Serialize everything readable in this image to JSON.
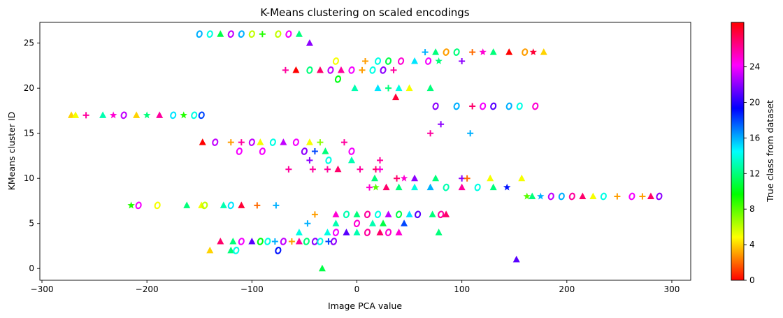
{
  "chart_data": {
    "type": "scatter",
    "title": "K-Means clustering on scaled encodings",
    "xlabel": "Image PCA value",
    "ylabel": "KMeans cluster ID",
    "colorbar_label": "True class from dataset",
    "xlim": [
      -302,
      318
    ],
    "ylim": [
      -1.3,
      27.3
    ],
    "xticks": [
      -300,
      -200,
      -100,
      0,
      100,
      200,
      300
    ],
    "xtick_labels": [
      "−300",
      "−200",
      "−100",
      "0",
      "100",
      "200",
      "300"
    ],
    "yticks": [
      0,
      5,
      10,
      15,
      20,
      25
    ],
    "ytick_labels": [
      "0",
      "5",
      "10",
      "15",
      "20",
      "25"
    ],
    "colorbar": {
      "colormap": "hsv",
      "vmin": 0,
      "vmax": 29,
      "ticks": [
        0,
        4,
        8,
        12,
        16,
        20,
        24
      ],
      "tick_labels": [
        "0",
        "4",
        "8",
        "12",
        "16",
        "20",
        "24"
      ]
    },
    "grid": false,
    "legend": "none",
    "marker_types": [
      "^",
      "o",
      "+",
      "*"
    ],
    "points": [
      {
        "x": -33,
        "y": 0,
        "c": 11,
        "m": "^"
      },
      {
        "x": 152,
        "y": 1,
        "c": 21,
        "m": "^"
      },
      {
        "x": -140,
        "y": 2,
        "c": 4,
        "m": "^"
      },
      {
        "x": -120,
        "y": 2,
        "c": 12,
        "m": "^"
      },
      {
        "x": -115,
        "y": 2,
        "c": 14,
        "m": "o"
      },
      {
        "x": -75,
        "y": 2,
        "c": 19,
        "m": "o"
      },
      {
        "x": -130,
        "y": 3,
        "c": 27,
        "m": "^"
      },
      {
        "x": -118,
        "y": 3,
        "c": 12,
        "m": "^"
      },
      {
        "x": -110,
        "y": 3,
        "c": 24,
        "m": "o"
      },
      {
        "x": -100,
        "y": 3,
        "c": 21,
        "m": "^"
      },
      {
        "x": -92,
        "y": 3,
        "c": 10,
        "m": "o"
      },
      {
        "x": -85,
        "y": 3,
        "c": 14,
        "m": "o"
      },
      {
        "x": -78,
        "y": 3,
        "c": 16,
        "m": "+"
      },
      {
        "x": -70,
        "y": 3,
        "c": 23,
        "m": "o"
      },
      {
        "x": -62,
        "y": 3,
        "c": 3,
        "m": "+"
      },
      {
        "x": -55,
        "y": 3,
        "c": 26,
        "m": "^"
      },
      {
        "x": -48,
        "y": 3,
        "c": 12,
        "m": "o"
      },
      {
        "x": -40,
        "y": 3,
        "c": 22,
        "m": "o"
      },
      {
        "x": -35,
        "y": 3,
        "c": 14,
        "m": "o"
      },
      {
        "x": -27,
        "y": 3,
        "c": 18,
        "m": "+"
      },
      {
        "x": -22,
        "y": 3,
        "c": 22,
        "m": "o"
      },
      {
        "x": -28,
        "y": 4,
        "c": 14,
        "m": "^"
      },
      {
        "x": -20,
        "y": 4,
        "c": 24,
        "m": "o"
      },
      {
        "x": -10,
        "y": 4,
        "c": 21,
        "m": "^"
      },
      {
        "x": 0,
        "y": 4,
        "c": 13,
        "m": "^"
      },
      {
        "x": 10,
        "y": 4,
        "c": 26,
        "m": "o"
      },
      {
        "x": 22,
        "y": 4,
        "c": 27,
        "m": "^"
      },
      {
        "x": 30,
        "y": 4,
        "c": 25,
        "m": "o"
      },
      {
        "x": 40,
        "y": 4,
        "c": 25,
        "m": "^"
      },
      {
        "x": 78,
        "y": 4,
        "c": 12,
        "m": "^"
      },
      {
        "x": -55,
        "y": 4,
        "c": 14,
        "m": "^"
      },
      {
        "x": -47,
        "y": 5,
        "c": 16,
        "m": "+"
      },
      {
        "x": -20,
        "y": 5,
        "c": 13,
        "m": "^"
      },
      {
        "x": 0,
        "y": 5,
        "c": 25,
        "m": "o"
      },
      {
        "x": 15,
        "y": 5,
        "c": 13,
        "m": "^"
      },
      {
        "x": 25,
        "y": 5,
        "c": 11,
        "m": "^"
      },
      {
        "x": 45,
        "y": 5,
        "c": 18,
        "m": "^"
      },
      {
        "x": -40,
        "y": 6,
        "c": 3,
        "m": "+"
      },
      {
        "x": -20,
        "y": 6,
        "c": 25,
        "m": "^"
      },
      {
        "x": -10,
        "y": 6,
        "c": 13,
        "m": "o"
      },
      {
        "x": 0,
        "y": 6,
        "c": 12,
        "m": "^"
      },
      {
        "x": 10,
        "y": 6,
        "c": 26,
        "m": "o"
      },
      {
        "x": 20,
        "y": 6,
        "c": 14,
        "m": "o"
      },
      {
        "x": 30,
        "y": 6,
        "c": 23,
        "m": "^"
      },
      {
        "x": 40,
        "y": 6,
        "c": 11,
        "m": "o"
      },
      {
        "x": 50,
        "y": 6,
        "c": 15,
        "m": "^"
      },
      {
        "x": 58,
        "y": 6,
        "c": 21,
        "m": "o"
      },
      {
        "x": 72,
        "y": 6,
        "c": 12,
        "m": "^"
      },
      {
        "x": 80,
        "y": 6,
        "c": 26,
        "m": "o"
      },
      {
        "x": 85,
        "y": 6,
        "c": 27,
        "m": "^"
      },
      {
        "x": -215,
        "y": 7,
        "c": 9,
        "m": "*"
      },
      {
        "x": -208,
        "y": 7,
        "c": 24,
        "m": "o"
      },
      {
        "x": -190,
        "y": 7,
        "c": 5,
        "m": "o"
      },
      {
        "x": -162,
        "y": 7,
        "c": 12,
        "m": "^"
      },
      {
        "x": -148,
        "y": 7,
        "c": 5,
        "m": "^"
      },
      {
        "x": -145,
        "y": 7,
        "c": 6,
        "m": "o"
      },
      {
        "x": -127,
        "y": 7,
        "c": 13,
        "m": "^"
      },
      {
        "x": -120,
        "y": 7,
        "c": 15,
        "m": "o"
      },
      {
        "x": -110,
        "y": 7,
        "c": 28,
        "m": "^"
      },
      {
        "x": -95,
        "y": 7,
        "c": 2,
        "m": "+"
      },
      {
        "x": -77,
        "y": 7,
        "c": 16,
        "m": "+"
      },
      {
        "x": 162,
        "y": 8,
        "c": 8,
        "m": "*"
      },
      {
        "x": 167,
        "y": 8,
        "c": 12,
        "m": "^"
      },
      {
        "x": 175,
        "y": 8,
        "c": 16,
        "m": "*"
      },
      {
        "x": 185,
        "y": 8,
        "c": 23,
        "m": "o"
      },
      {
        "x": 195,
        "y": 8,
        "c": 16,
        "m": "o"
      },
      {
        "x": 205,
        "y": 8,
        "c": 26,
        "m": "o"
      },
      {
        "x": 215,
        "y": 8,
        "c": 27,
        "m": "^"
      },
      {
        "x": 225,
        "y": 8,
        "c": 5,
        "m": "^"
      },
      {
        "x": 235,
        "y": 8,
        "c": 14,
        "m": "o"
      },
      {
        "x": 248,
        "y": 8,
        "c": 3,
        "m": "+"
      },
      {
        "x": 262,
        "y": 8,
        "c": 24,
        "m": "o"
      },
      {
        "x": 272,
        "y": 8,
        "c": 3,
        "m": "+"
      },
      {
        "x": 280,
        "y": 8,
        "c": 27,
        "m": "^"
      },
      {
        "x": 288,
        "y": 8,
        "c": 22,
        "m": "o"
      },
      {
        "x": 12,
        "y": 9,
        "c": 25,
        "m": "+"
      },
      {
        "x": 18,
        "y": 9,
        "c": 8,
        "m": "*"
      },
      {
        "x": 28,
        "y": 9,
        "c": 27,
        "m": "^"
      },
      {
        "x": 40,
        "y": 9,
        "c": 12,
        "m": "^"
      },
      {
        "x": 55,
        "y": 9,
        "c": 14,
        "m": "^"
      },
      {
        "x": 70,
        "y": 9,
        "c": 16,
        "m": "^"
      },
      {
        "x": 85,
        "y": 9,
        "c": 13,
        "m": "o"
      },
      {
        "x": 100,
        "y": 9,
        "c": 26,
        "m": "^"
      },
      {
        "x": 115,
        "y": 9,
        "c": 14,
        "m": "o"
      },
      {
        "x": 130,
        "y": 9,
        "c": 12,
        "m": "^"
      },
      {
        "x": 143,
        "y": 9,
        "c": 19,
        "m": "*"
      },
      {
        "x": 17,
        "y": 10,
        "c": 12,
        "m": "^"
      },
      {
        "x": 38,
        "y": 10,
        "c": 27,
        "m": "+"
      },
      {
        "x": 45,
        "y": 10,
        "c": 25,
        "m": "*"
      },
      {
        "x": 55,
        "y": 10,
        "c": 22,
        "m": "^"
      },
      {
        "x": 75,
        "y": 10,
        "c": 12,
        "m": "^"
      },
      {
        "x": 100,
        "y": 10,
        "c": 22,
        "m": "+"
      },
      {
        "x": 105,
        "y": 10,
        "c": 2,
        "m": "+"
      },
      {
        "x": 127,
        "y": 10,
        "c": 5,
        "m": "^"
      },
      {
        "x": 157,
        "y": 10,
        "c": 5,
        "m": "^"
      },
      {
        "x": -65,
        "y": 11,
        "c": 26,
        "m": "+"
      },
      {
        "x": -42,
        "y": 11,
        "c": 26,
        "m": "+"
      },
      {
        "x": -28,
        "y": 11,
        "c": 26,
        "m": "+"
      },
      {
        "x": -18,
        "y": 11,
        "c": 27,
        "m": "^"
      },
      {
        "x": 3,
        "y": 11,
        "c": 26,
        "m": "+"
      },
      {
        "x": 18,
        "y": 11,
        "c": 27,
        "m": "+"
      },
      {
        "x": 22,
        "y": 11,
        "c": 25,
        "m": "+"
      },
      {
        "x": -45,
        "y": 12,
        "c": 22,
        "m": "+"
      },
      {
        "x": -27,
        "y": 12,
        "c": 14,
        "m": "o"
      },
      {
        "x": -5,
        "y": 12,
        "c": 13,
        "m": "^"
      },
      {
        "x": 22,
        "y": 12,
        "c": 26,
        "m": "+"
      },
      {
        "x": -112,
        "y": 13,
        "c": 24,
        "m": "o"
      },
      {
        "x": -90,
        "y": 13,
        "c": 24,
        "m": "o"
      },
      {
        "x": -50,
        "y": 13,
        "c": 22,
        "m": "o"
      },
      {
        "x": -40,
        "y": 13,
        "c": 18,
        "m": "+"
      },
      {
        "x": -30,
        "y": 13,
        "c": 12,
        "m": "^"
      },
      {
        "x": -5,
        "y": 13,
        "c": 24,
        "m": "o"
      },
      {
        "x": -147,
        "y": 14,
        "c": 0,
        "m": "^"
      },
      {
        "x": -135,
        "y": 14,
        "c": 23,
        "m": "o"
      },
      {
        "x": -120,
        "y": 14,
        "c": 3,
        "m": "+"
      },
      {
        "x": -110,
        "y": 14,
        "c": 26,
        "m": "+"
      },
      {
        "x": -100,
        "y": 14,
        "c": 23,
        "m": "o"
      },
      {
        "x": -92,
        "y": 14,
        "c": 5,
        "m": "^"
      },
      {
        "x": -80,
        "y": 14,
        "c": 14,
        "m": "o"
      },
      {
        "x": -70,
        "y": 14,
        "c": 23,
        "m": "^"
      },
      {
        "x": -58,
        "y": 14,
        "c": 24,
        "m": "o"
      },
      {
        "x": -45,
        "y": 14,
        "c": 5,
        "m": "^"
      },
      {
        "x": -35,
        "y": 14,
        "c": 7,
        "m": "+"
      },
      {
        "x": -12,
        "y": 14,
        "c": 26,
        "m": "+"
      },
      {
        "x": 70,
        "y": 15,
        "c": 26,
        "m": "+"
      },
      {
        "x": 108,
        "y": 15,
        "c": 16,
        "m": "+"
      },
      {
        "x": 80,
        "y": 16,
        "c": 22,
        "m": "+"
      },
      {
        "x": -272,
        "y": 17,
        "c": 4,
        "m": "^"
      },
      {
        "x": -268,
        "y": 17,
        "c": 5,
        "m": "^"
      },
      {
        "x": -258,
        "y": 17,
        "c": 26,
        "m": "+"
      },
      {
        "x": -242,
        "y": 17,
        "c": 13,
        "m": "^"
      },
      {
        "x": -232,
        "y": 17,
        "c": 25,
        "m": "*"
      },
      {
        "x": -222,
        "y": 17,
        "c": 23,
        "m": "o"
      },
      {
        "x": -210,
        "y": 17,
        "c": 4,
        "m": "^"
      },
      {
        "x": -200,
        "y": 17,
        "c": 12,
        "m": "*"
      },
      {
        "x": -188,
        "y": 17,
        "c": 26,
        "m": "^"
      },
      {
        "x": -175,
        "y": 17,
        "c": 15,
        "m": "o"
      },
      {
        "x": -165,
        "y": 17,
        "c": 9,
        "m": "*"
      },
      {
        "x": -155,
        "y": 17,
        "c": 14,
        "m": "o"
      },
      {
        "x": -148,
        "y": 17,
        "c": 18,
        "m": "o"
      },
      {
        "x": 75,
        "y": 18,
        "c": 22,
        "m": "o"
      },
      {
        "x": 95,
        "y": 18,
        "c": 16,
        "m": "o"
      },
      {
        "x": 110,
        "y": 18,
        "c": 27,
        "m": "+"
      },
      {
        "x": 120,
        "y": 18,
        "c": 24,
        "m": "o"
      },
      {
        "x": 130,
        "y": 18,
        "c": 21,
        "m": "o"
      },
      {
        "x": 145,
        "y": 18,
        "c": 16,
        "m": "o"
      },
      {
        "x": 155,
        "y": 18,
        "c": 14,
        "m": "o"
      },
      {
        "x": 170,
        "y": 18,
        "c": 25,
        "m": "o"
      },
      {
        "x": 37,
        "y": 19,
        "c": 28,
        "m": "^"
      },
      {
        "x": -2,
        "y": 20,
        "c": 13,
        "m": "^"
      },
      {
        "x": 20,
        "y": 20,
        "c": 15,
        "m": "^"
      },
      {
        "x": 30,
        "y": 20,
        "c": 12,
        "m": "+"
      },
      {
        "x": 40,
        "y": 20,
        "c": 14,
        "m": "^"
      },
      {
        "x": 50,
        "y": 20,
        "c": 5,
        "m": "^"
      },
      {
        "x": 70,
        "y": 20,
        "c": 12,
        "m": "^"
      },
      {
        "x": -18,
        "y": 21,
        "c": 10,
        "m": "o"
      },
      {
        "x": -68,
        "y": 22,
        "c": 26,
        "m": "+"
      },
      {
        "x": -58,
        "y": 22,
        "c": 0,
        "m": "^"
      },
      {
        "x": -45,
        "y": 22,
        "c": 12,
        "m": "o"
      },
      {
        "x": -35,
        "y": 22,
        "c": 27,
        "m": "^"
      },
      {
        "x": -25,
        "y": 22,
        "c": 23,
        "m": "o"
      },
      {
        "x": -15,
        "y": 22,
        "c": 26,
        "m": "^"
      },
      {
        "x": -5,
        "y": 22,
        "c": 24,
        "m": "o"
      },
      {
        "x": 5,
        "y": 22,
        "c": 3,
        "m": "+"
      },
      {
        "x": 15,
        "y": 22,
        "c": 14,
        "m": "o"
      },
      {
        "x": 25,
        "y": 22,
        "c": 22,
        "m": "o"
      },
      {
        "x": 35,
        "y": 22,
        "c": 26,
        "m": "+"
      },
      {
        "x": -20,
        "y": 23,
        "c": 5,
        "m": "o"
      },
      {
        "x": 8,
        "y": 23,
        "c": 3,
        "m": "+"
      },
      {
        "x": 20,
        "y": 23,
        "c": 14,
        "m": "o"
      },
      {
        "x": 30,
        "y": 23,
        "c": 11,
        "m": "o"
      },
      {
        "x": 42,
        "y": 23,
        "c": 25,
        "m": "o"
      },
      {
        "x": 55,
        "y": 23,
        "c": 15,
        "m": "^"
      },
      {
        "x": 68,
        "y": 23,
        "c": 24,
        "m": "o"
      },
      {
        "x": 78,
        "y": 23,
        "c": 12,
        "m": "*"
      },
      {
        "x": 100,
        "y": 23,
        "c": 22,
        "m": "+"
      },
      {
        "x": 65,
        "y": 24,
        "c": 16,
        "m": "+"
      },
      {
        "x": 75,
        "y": 24,
        "c": 12,
        "m": "^"
      },
      {
        "x": 85,
        "y": 24,
        "c": 3,
        "m": "o"
      },
      {
        "x": 95,
        "y": 24,
        "c": 12,
        "m": "o"
      },
      {
        "x": 110,
        "y": 24,
        "c": 2,
        "m": "+"
      },
      {
        "x": 120,
        "y": 24,
        "c": 25,
        "m": "*"
      },
      {
        "x": 130,
        "y": 24,
        "c": 12,
        "m": "^"
      },
      {
        "x": 145,
        "y": 24,
        "c": 0,
        "m": "^"
      },
      {
        "x": 160,
        "y": 24,
        "c": 3,
        "m": "o"
      },
      {
        "x": 168,
        "y": 24,
        "c": 28,
        "m": "*"
      },
      {
        "x": 178,
        "y": 24,
        "c": 4,
        "m": "^"
      },
      {
        "x": -45,
        "y": 25,
        "c": 22,
        "m": "^"
      },
      {
        "x": -150,
        "y": 26,
        "c": 16,
        "m": "o"
      },
      {
        "x": -140,
        "y": 26,
        "c": 14,
        "m": "o"
      },
      {
        "x": -130,
        "y": 26,
        "c": 11,
        "m": "^"
      },
      {
        "x": -120,
        "y": 26,
        "c": 23,
        "m": "o"
      },
      {
        "x": -110,
        "y": 26,
        "c": 16,
        "m": "o"
      },
      {
        "x": -100,
        "y": 26,
        "c": 6,
        "m": "o"
      },
      {
        "x": -90,
        "y": 26,
        "c": 9,
        "m": "+"
      },
      {
        "x": -75,
        "y": 26,
        "c": 6,
        "m": "o"
      },
      {
        "x": -65,
        "y": 26,
        "c": 24,
        "m": "o"
      },
      {
        "x": -55,
        "y": 26,
        "c": 12,
        "m": "^"
      }
    ]
  }
}
